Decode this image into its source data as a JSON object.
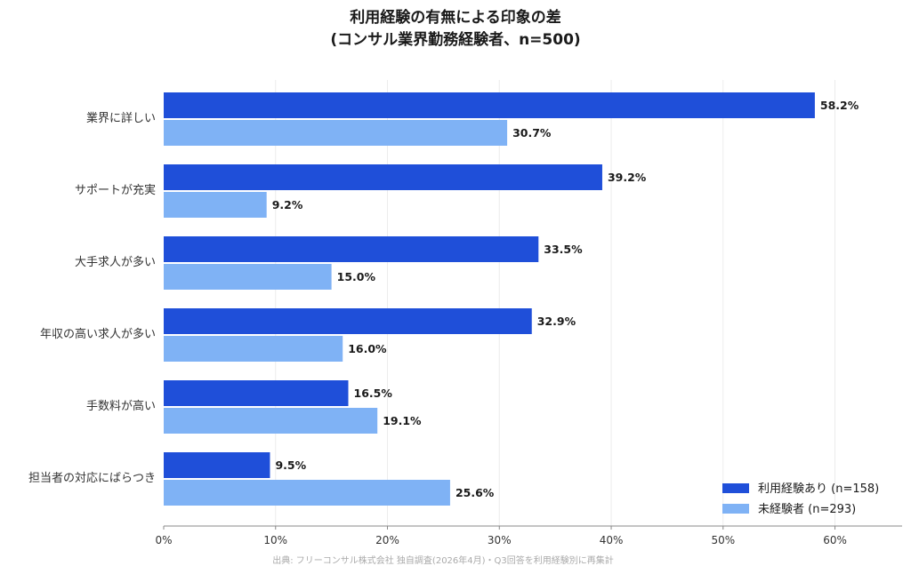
{
  "chart_data": {
    "type": "bar",
    "orientation": "horizontal",
    "title": "利用経験の有無による印象の差",
    "subtitle": "(コンサル業界勤務経験者、n=500)",
    "categories": [
      "業界に詳しい",
      "サポートが充実",
      "大手求人が多い",
      "年収の高い求人が多い",
      "手数料が高い",
      "担当者の対応にばらつき"
    ],
    "series": [
      {
        "name": "利用経験あり (n=158)",
        "color": "#1f4fd9",
        "values": [
          58.2,
          39.2,
          33.5,
          32.9,
          16.5,
          9.5
        ]
      },
      {
        "name": "未経験者 (n=293)",
        "color": "#7fb2f5",
        "values": [
          30.7,
          9.2,
          15.0,
          16.0,
          19.1,
          25.6
        ]
      }
    ],
    "value_labels": [
      [
        "58.2%",
        "39.2%",
        "33.5%",
        "32.9%",
        "16.5%",
        "9.5%"
      ],
      [
        "30.7%",
        "9.2%",
        "15.0%",
        "16.0%",
        "19.1%",
        "25.6%"
      ]
    ],
    "xlim": [
      0,
      66
    ],
    "xticks": [
      0,
      10,
      20,
      30,
      40,
      50,
      60
    ],
    "xtick_labels": [
      "0%",
      "10%",
      "20%",
      "30%",
      "40%",
      "50%",
      "60%"
    ],
    "grid": "vertical",
    "legend_position": "bottom-right",
    "source": "出典: フリーコンサル株式会社 独自調査(2026年4月)・Q3回答を利用経験別に再集計"
  }
}
